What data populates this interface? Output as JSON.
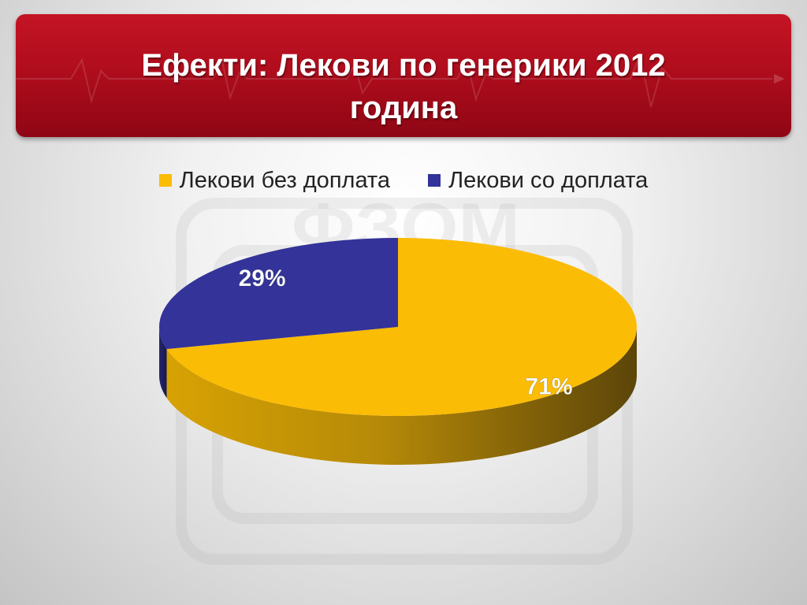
{
  "slide": {
    "title_line1": "Ефекти: Лекови по генерики 2012",
    "title_line2": "година",
    "banner_color": "#b00d1d"
  },
  "chart_data": {
    "type": "pie",
    "style": "3d",
    "series": [
      {
        "name": "Лекови без доплата",
        "value": 71,
        "label": "71%",
        "color": "#fbbc06"
      },
      {
        "name": "Лекови со доплата",
        "value": 29,
        "label": "29%",
        "color": "#333399"
      }
    ],
    "legend_position": "top"
  }
}
